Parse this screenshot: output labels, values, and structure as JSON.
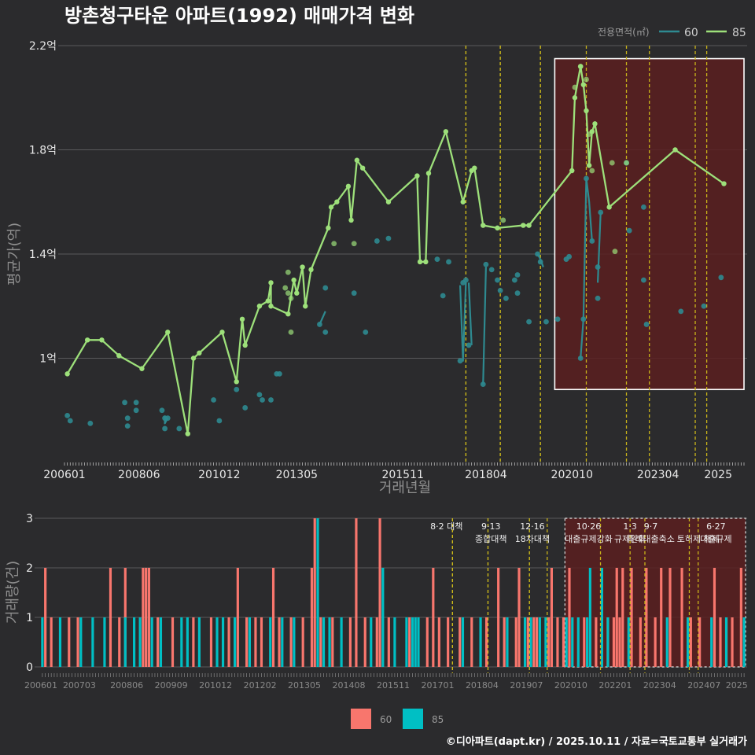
{
  "chart_data": [
    {
      "type": "line",
      "title": "방촌청구타운 아파트(1992) 매매가격 변화",
      "xlabel": "거래년월",
      "ylabel": "평균가(억)",
      "ylim": [
        0.6,
        2.2
      ],
      "y_ticks": [
        {
          "v": 1.0,
          "label": "1억"
        },
        {
          "v": 1.4,
          "label": "1.4억"
        },
        {
          "v": 1.8,
          "label": "1.8억"
        },
        {
          "v": 2.2,
          "label": "2.2억"
        }
      ],
      "x_ticks": [
        {
          "i": 0,
          "label": "200601"
        },
        {
          "i": 26,
          "label": "200806"
        },
        {
          "i": 54,
          "label": "201012"
        },
        {
          "i": 81,
          "label": "201305"
        },
        {
          "i": 118,
          "label": "201511"
        },
        {
          "i": 147,
          "label": "201804"
        },
        {
          "i": 177,
          "label": "202010"
        },
        {
          "i": 207,
          "label": "202304"
        },
        {
          "i": 228,
          "label": "2025"
        }
      ],
      "x_span": [
        0,
        237
      ],
      "legend_title": "전용면적(㎡)",
      "legend_position": "top-right",
      "highlight_range": [
        171,
        237
      ],
      "highlight_ylim": [
        0.88,
        2.15
      ],
      "event_lines": [
        [
          140,
          "#d8c418"
        ],
        [
          152,
          "#d8c418"
        ],
        [
          166,
          "#d8c418"
        ],
        [
          182,
          "#c9b41a"
        ],
        [
          196,
          "#c9b41a"
        ],
        [
          204,
          "#c9b41a"
        ],
        [
          220,
          "#c9b41a"
        ],
        [
          224,
          "#c9b41a"
        ]
      ],
      "series": [
        {
          "name": "60",
          "color": "#2e8a90",
          "segments": [
            [
              [
                35,
                0.78
              ],
              [
                35,
                0.75
              ],
              [
                36,
                0.77
              ]
            ],
            [
              [
                89,
                1.13
              ],
              [
                91,
                1.18
              ]
            ],
            [
              [
                138,
                1.28
              ],
              [
                139,
                0.99
              ],
              [
                140,
                1.29
              ]
            ],
            [
              [
                141,
                1.29
              ],
              [
                142,
                1.05
              ]
            ],
            [
              [
                146,
                0.9
              ],
              [
                147,
                1.35
              ]
            ],
            [
              [
                165,
                1.4
              ],
              [
                166,
                1.38
              ],
              [
                167,
                1.35
              ]
            ],
            [
              [
                180,
                1.0
              ],
              [
                181,
                1.15
              ],
              [
                182,
                1.69
              ],
              [
                183,
                1.6
              ],
              [
                184,
                1.45
              ]
            ],
            [
              [
                186,
                1.29
              ],
              [
                187,
                1.56
              ]
            ]
          ],
          "points": [
            [
              1,
              0.78
            ],
            [
              2,
              0.76
            ],
            [
              9,
              0.75
            ],
            [
              21,
              0.83
            ],
            [
              22,
              0.77
            ],
            [
              22,
              0.74
            ],
            [
              25,
              0.8
            ],
            [
              25,
              0.83
            ],
            [
              34,
              0.8
            ],
            [
              35,
              0.73
            ],
            [
              35,
              0.77
            ],
            [
              36,
              0.77
            ],
            [
              40,
              0.73
            ],
            [
              52,
              0.84
            ],
            [
              54,
              0.76
            ],
            [
              60,
              0.88
            ],
            [
              63,
              0.81
            ],
            [
              68,
              0.86
            ],
            [
              69,
              0.84
            ],
            [
              72,
              0.84
            ],
            [
              74,
              0.94
            ],
            [
              75,
              0.94
            ],
            [
              89,
              1.13
            ],
            [
              91,
              1.27
            ],
            [
              91,
              1.1
            ],
            [
              101,
              1.25
            ],
            [
              105,
              1.1
            ],
            [
              109,
              1.45
            ],
            [
              113,
              1.46
            ],
            [
              130,
              1.38
            ],
            [
              132,
              1.24
            ],
            [
              134,
              1.37
            ],
            [
              138,
              0.99
            ],
            [
              139,
              1.29
            ],
            [
              140,
              1.3
            ],
            [
              141,
              1.05
            ],
            [
              146,
              0.9
            ],
            [
              147,
              1.36
            ],
            [
              149,
              1.34
            ],
            [
              151,
              1.3
            ],
            [
              152,
              1.26
            ],
            [
              154,
              1.23
            ],
            [
              157,
              1.3
            ],
            [
              158,
              1.32
            ],
            [
              158,
              1.25
            ],
            [
              162,
              1.14
            ],
            [
              165,
              1.4
            ],
            [
              166,
              1.37
            ],
            [
              168,
              1.14
            ],
            [
              172,
              1.15
            ],
            [
              175,
              1.38
            ],
            [
              176,
              1.39
            ],
            [
              180,
              1.0
            ],
            [
              181,
              1.15
            ],
            [
              182,
              1.69
            ],
            [
              184,
              1.45
            ],
            [
              186,
              1.35
            ],
            [
              186,
              1.23
            ],
            [
              187,
              1.56
            ],
            [
              196,
              1.75
            ],
            [
              197,
              1.49
            ],
            [
              202,
              1.58
            ],
            [
              202,
              1.3
            ],
            [
              203,
              1.13
            ],
            [
              215,
              1.18
            ],
            [
              223,
              1.2
            ],
            [
              229,
              1.31
            ]
          ]
        },
        {
          "name": "85",
          "color": "#9de07a",
          "line": [
            [
              1,
              0.94
            ],
            [
              8,
              1.07
            ],
            [
              13,
              1.07
            ],
            [
              19,
              1.01
            ],
            [
              27,
              0.96
            ],
            [
              36,
              1.1
            ],
            [
              43,
              0.71
            ],
            [
              45,
              1.0
            ],
            [
              47,
              1.02
            ],
            [
              55,
              1.1
            ],
            [
              60,
              0.91
            ],
            [
              62,
              1.15
            ],
            [
              63,
              1.05
            ],
            [
              68,
              1.2
            ],
            [
              71,
              1.22
            ],
            [
              72,
              1.29
            ],
            [
              72,
              1.2
            ],
            [
              78,
              1.17
            ],
            [
              80,
              1.3
            ],
            [
              81,
              1.25
            ],
            [
              83,
              1.35
            ],
            [
              84,
              1.2
            ],
            [
              86,
              1.34
            ],
            [
              92,
              1.5
            ],
            [
              93,
              1.58
            ],
            [
              95,
              1.6
            ],
            [
              99,
              1.66
            ],
            [
              100,
              1.53
            ],
            [
              102,
              1.76
            ],
            [
              104,
              1.73
            ],
            [
              113,
              1.6
            ],
            [
              123,
              1.7
            ],
            [
              124,
              1.37
            ],
            [
              126,
              1.37
            ],
            [
              127,
              1.71
            ],
            [
              133,
              1.87
            ],
            [
              139,
              1.6
            ],
            [
              142,
              1.72
            ],
            [
              143,
              1.73
            ],
            [
              146,
              1.51
            ],
            [
              151,
              1.5
            ],
            [
              160,
              1.51
            ],
            [
              162,
              1.51
            ],
            [
              177,
              1.72
            ],
            [
              178,
              2.0
            ],
            [
              180,
              2.12
            ],
            [
              181,
              2.05
            ],
            [
              182,
              1.95
            ],
            [
              183,
              1.74
            ],
            [
              184,
              1.87
            ],
            [
              185,
              1.9
            ],
            [
              190,
              1.58
            ],
            [
              213,
              1.8
            ],
            [
              230,
              1.67
            ]
          ],
          "points": [
            [
              77,
              1.27
            ],
            [
              78,
              1.33
            ],
            [
              78,
              1.25
            ],
            [
              79,
              1.23
            ],
            [
              79,
              1.1
            ],
            [
              94,
              1.44
            ],
            [
              101,
              1.44
            ],
            [
              153,
              1.53
            ],
            [
              178,
              2.04
            ],
            [
              180,
              2.12
            ],
            [
              182,
              2.07
            ],
            [
              183,
              1.86
            ],
            [
              184,
              1.72
            ],
            [
              191,
              1.75
            ],
            [
              192,
              1.41
            ],
            [
              196,
              1.75
            ]
          ]
        }
      ]
    },
    {
      "type": "bar",
      "ylabel": "거래량(건)",
      "ylim": [
        0,
        3
      ],
      "y_ticks": [
        0,
        1,
        2,
        3
      ],
      "x_ticks": [
        {
          "i": 0,
          "label": "200601"
        },
        {
          "i": 13,
          "label": "200703"
        },
        {
          "i": 29,
          "label": "200806"
        },
        {
          "i": 44,
          "label": "200909"
        },
        {
          "i": 59,
          "label": "201012"
        },
        {
          "i": 74,
          "label": "201202"
        },
        {
          "i": 89,
          "label": "201305"
        },
        {
          "i": 104,
          "label": "201408"
        },
        {
          "i": 119,
          "label": "201511"
        },
        {
          "i": 134,
          "label": "201701"
        },
        {
          "i": 149,
          "label": "201804"
        },
        {
          "i": 164,
          "label": "201907"
        },
        {
          "i": 179,
          "label": "202010"
        },
        {
          "i": 194,
          "label": "202201"
        },
        {
          "i": 209,
          "label": "202304"
        },
        {
          "i": 224,
          "label": "202407"
        },
        {
          "i": 235,
          "label": "2025"
        }
      ],
      "x_span": [
        0,
        237
      ],
      "highlight_range": [
        177,
        237
      ],
      "event_lines": [
        [
          139,
          "#d8c418"
        ],
        [
          151,
          "#d8c418"
        ],
        [
          165,
          "#d8c418"
        ],
        [
          171,
          "#c9b41a"
        ],
        [
          189,
          "#c9b41a"
        ],
        [
          199,
          "#c9b41a"
        ],
        [
          204,
          "#c9b41a"
        ],
        [
          219,
          "#c9b41a"
        ],
        [
          222,
          "#c9b41a"
        ]
      ],
      "annotations": [
        {
          "i": 137,
          "lines": [
            "8·2 대책"
          ]
        },
        {
          "i": 152,
          "lines": [
            "9·13",
            "종합대책"
          ]
        },
        {
          "i": 166,
          "lines": [
            "12·16",
            "18차대책"
          ]
        },
        {
          "i": 185,
          "lines": [
            "10·26",
            "대출규제강화"
          ]
        },
        {
          "i": 199,
          "lines": [
            "1·3",
            "규제완화"
          ]
        },
        {
          "i": 206,
          "lines": [
            "9·7",
            "특례대출축소"
          ]
        },
        {
          "i": 222,
          "lines": [
            "",
            "토허제 해제"
          ]
        },
        {
          "i": 228,
          "lines": [
            "6·27",
            "대출규제"
          ]
        }
      ],
      "legend": [
        {
          "name": "60",
          "color": "#f8766d"
        },
        {
          "name": "85",
          "color": "#00bfc4"
        }
      ],
      "series": [
        {
          "name": "60",
          "color": "#f8766d",
          "values": {
            "1": 2,
            "3": 1,
            "9": 1,
            "12": 1,
            "23": 2,
            "26": 1,
            "28": 2,
            "34": 2,
            "35": 2,
            "36": 2,
            "39": 1,
            "44": 1,
            "51": 1,
            "57": 1,
            "63": 1,
            "66": 2,
            "69": 1,
            "72": 1,
            "74": 1,
            "78": 2,
            "80": 1,
            "84": 1,
            "88": 1,
            "91": 2,
            "92": 3,
            "94": 1,
            "98": 1,
            "104": 1,
            "106": 3,
            "109": 1,
            "113": 1,
            "114": 3,
            "117": 1,
            "124": 1,
            "130": 1,
            "132": 2,
            "134": 1,
            "137": 1,
            "141": 1,
            "145": 1,
            "150": 1,
            "154": 2,
            "156": 1,
            "160": 1,
            "161": 2,
            "164": 1,
            "166": 1,
            "167": 1,
            "171": 1,
            "172": 2,
            "174": 1,
            "176": 1,
            "178": 2,
            "183": 1,
            "187": 1,
            "191": 1,
            "193": 1,
            "194": 2,
            "195": 1,
            "196": 2,
            "199": 2,
            "202": 1,
            "204": 2,
            "207": 1,
            "209": 2,
            "212": 2,
            "216": 2,
            "219": 1,
            "222": 1,
            "227": 2,
            "229": 1,
            "231": 1,
            "233": 1,
            "236": 2
          }
        },
        {
          "name": "85",
          "color": "#00bfc4",
          "values": {
            "0": 1,
            "6": 1,
            "13": 1,
            "17": 1,
            "21": 1,
            "28": 1,
            "31": 1,
            "33": 1,
            "37": 1,
            "40": 1,
            "47": 1,
            "49": 1,
            "53": 1,
            "59": 1,
            "61": 1,
            "65": 1,
            "70": 1,
            "77": 1,
            "81": 1,
            "85": 1,
            "93": 3,
            "95": 1,
            "97": 1,
            "101": 1,
            "111": 1,
            "115": 2,
            "119": 1,
            "123": 1,
            "125": 1,
            "126": 1,
            "127": 1,
            "142": 1,
            "148": 1,
            "157": 1,
            "163": 1,
            "165": 1,
            "168": 1,
            "170": 1,
            "177": 1,
            "179": 1,
            "181": 1,
            "184": 1,
            "185": 2,
            "189": 2,
            "191": 1,
            "198": 1,
            "211": 1,
            "218": 1,
            "226": 1,
            "231": 1,
            "237": 1
          }
        }
      ]
    }
  ],
  "caption": "©디아파트(dapt.kr) / 2025.10.11 / 자료=국토교통부 실거래가"
}
